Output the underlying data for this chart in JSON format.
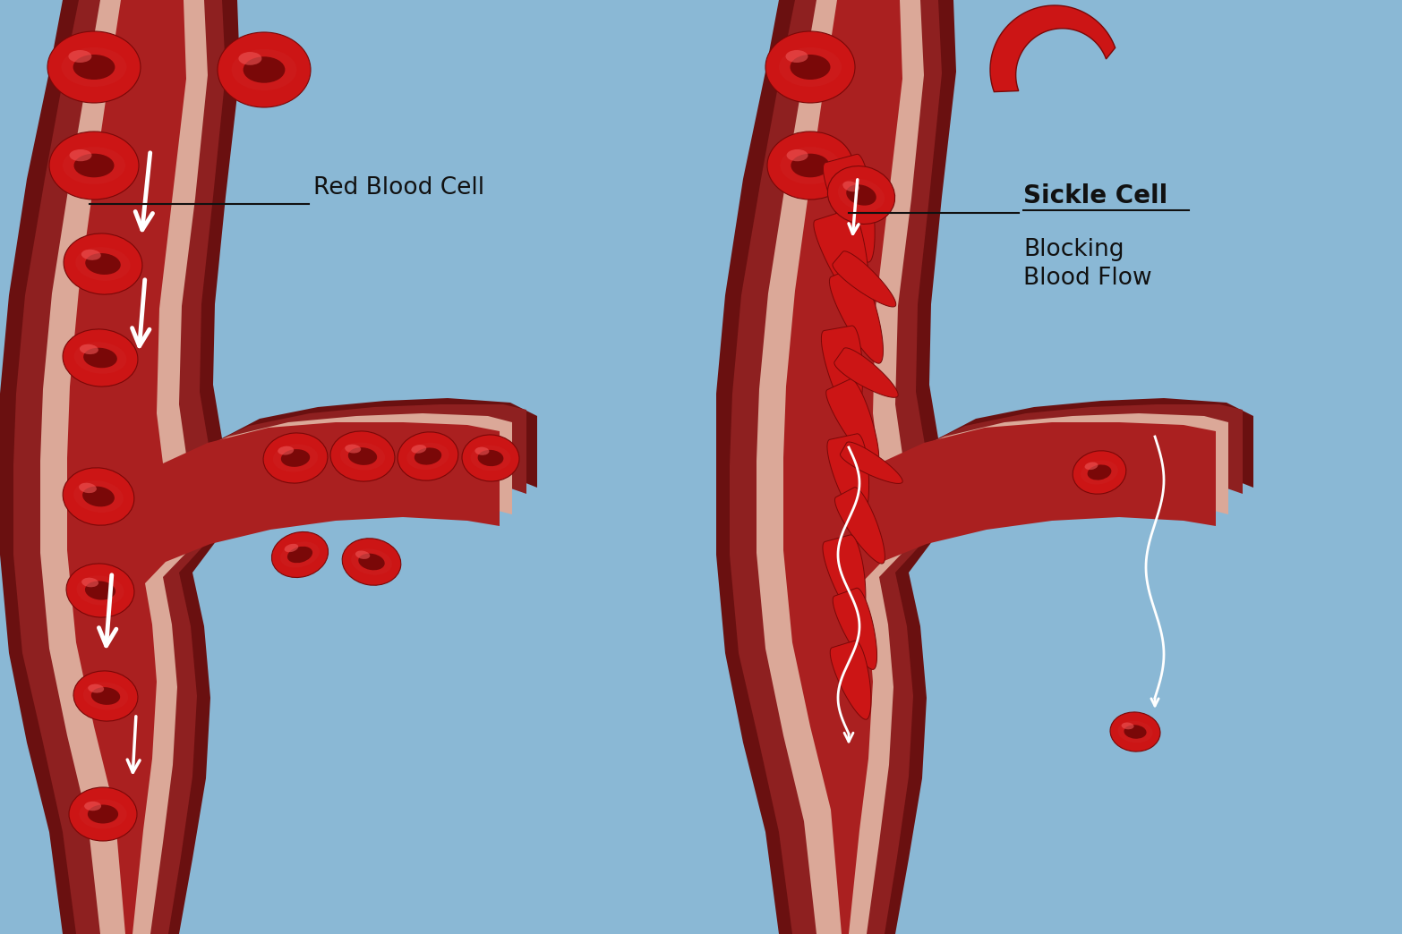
{
  "bg_color": "#8ab8d5",
  "vessel_dark": "#6a1010",
  "vessel_mid": "#8e2020",
  "vessel_wall": "#b84545",
  "vessel_pink": "#dba898",
  "vessel_lumen": "#aa2020",
  "rbc_red": "#cc1515",
  "rbc_dark": "#7a0808",
  "rbc_highlight": "#ee4444",
  "sickle_red": "#cc1515",
  "white": "#ffffff",
  "text_dark": "#111111",
  "label_rbc": "Red Blood Cell",
  "label_sickle": "Sickle Cell",
  "label_blocking": "Blocking\nBlood Flow"
}
